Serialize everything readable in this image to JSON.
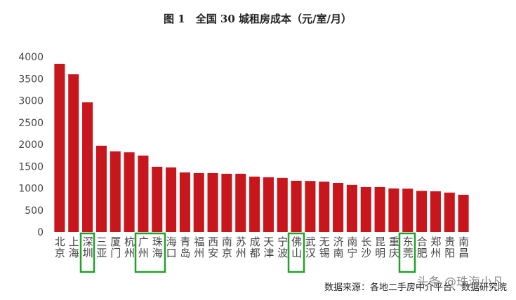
{
  "chart_data": {
    "type": "bar",
    "title": "图 1　全国 30 城租房成本（元/室/月）",
    "categories": [
      "北京",
      "上海",
      "深圳",
      "三亚",
      "厦门",
      "杭州",
      "广州",
      "珠海",
      "海口",
      "青岛",
      "福州",
      "西安",
      "南京",
      "苏州",
      "成都",
      "天津",
      "宁波",
      "佛山",
      "武汉",
      "无锡",
      "济南",
      "南宁",
      "长沙",
      "昆明",
      "重庆",
      "东莞",
      "合肥",
      "郑州",
      "贵阳",
      "南昌"
    ],
    "values": [
      3840,
      3600,
      2960,
      1970,
      1840,
      1820,
      1745,
      1490,
      1475,
      1360,
      1345,
      1345,
      1330,
      1330,
      1265,
      1250,
      1235,
      1170,
      1165,
      1150,
      1120,
      1075,
      1025,
      1025,
      995,
      990,
      940,
      930,
      900,
      850
    ],
    "color": "#c8161d",
    "ylim": [
      0,
      4000
    ],
    "yticks": [
      0,
      500,
      1000,
      1500,
      2000,
      2500,
      3000,
      3500,
      4000
    ],
    "grid": false,
    "source": "数据来源：各地二手房中介平台、数据研究院",
    "watermark": "头条 @珠海小凡"
  }
}
